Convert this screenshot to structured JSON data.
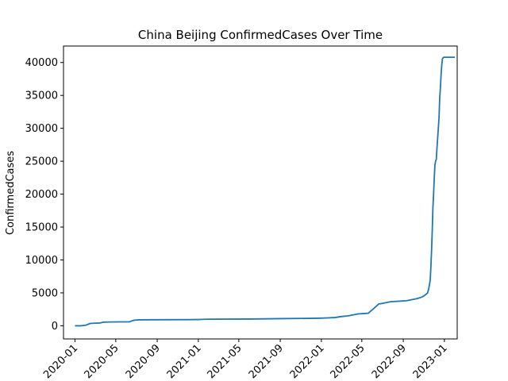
{
  "chart_data": {
    "type": "line",
    "title": "China Beijing ConfirmedCases Over Time",
    "xlabel": "",
    "ylabel": "ConfirmedCases",
    "ylim": [
      -2000,
      42500
    ],
    "xlim": [
      "2019-11-28",
      "2023-02-08"
    ],
    "grid": false,
    "legend": "none",
    "x_ticks": [
      "2020-01-01",
      "2020-05-01",
      "2020-09-01",
      "2021-01-01",
      "2021-05-01",
      "2021-09-01",
      "2022-01-01",
      "2022-05-01",
      "2022-09-01",
      "2023-01-01"
    ],
    "x_tick_labels": [
      "2020-01",
      "2020-05",
      "2020-09",
      "2021-01",
      "2021-05",
      "2021-09",
      "2022-01",
      "2022-05",
      "2022-09",
      "2023-01"
    ],
    "y_ticks": [
      0,
      5000,
      10000,
      15000,
      20000,
      25000,
      30000,
      35000,
      40000
    ],
    "y_tick_labels": [
      "0",
      "5000",
      "10000",
      "15000",
      "20000",
      "25000",
      "30000",
      "35000",
      "40000"
    ],
    "line_color": "#1f77b4",
    "series": [
      {
        "x": [
          "2020-01-01",
          "2020-01-20",
          "2020-02-03",
          "2020-02-15",
          "2020-03-01",
          "2020-03-15",
          "2020-03-25",
          "2020-04-15",
          "2020-05-15",
          "2020-06-11",
          "2020-06-18",
          "2020-06-25",
          "2020-07-10",
          "2020-09-01",
          "2020-12-01",
          "2021-01-01",
          "2021-01-31",
          "2021-06-01",
          "2021-09-01",
          "2021-12-01",
          "2022-01-01",
          "2022-01-20",
          "2022-02-10",
          "2022-03-01",
          "2022-03-20",
          "2022-04-05",
          "2022-04-20",
          "2022-05-05",
          "2022-05-20",
          "2022-06-05",
          "2022-06-20",
          "2022-07-01",
          "2022-07-25",
          "2022-08-10",
          "2022-08-25",
          "2022-09-10",
          "2022-09-25",
          "2022-10-10",
          "2022-10-20",
          "2022-10-28",
          "2022-11-03",
          "2022-11-08",
          "2022-11-12",
          "2022-11-15",
          "2022-11-18",
          "2022-11-20",
          "2022-11-22",
          "2022-11-24",
          "2022-11-26",
          "2022-11-28",
          "2022-11-30",
          "2022-12-02",
          "2022-12-04",
          "2022-12-06",
          "2022-12-08",
          "2022-12-10",
          "2022-12-12",
          "2022-12-14",
          "2022-12-16",
          "2022-12-18",
          "2022-12-20",
          "2022-12-22",
          "2022-12-24",
          "2022-12-26",
          "2022-12-28",
          "2022-12-30",
          "2023-01-01",
          "2023-01-05",
          "2023-02-01"
        ],
        "values": [
          0,
          0,
          100,
          350,
          400,
          420,
          550,
          580,
          590,
          600,
          750,
          850,
          900,
          920,
          930,
          950,
          1000,
          1020,
          1080,
          1130,
          1160,
          1200,
          1250,
          1400,
          1500,
          1650,
          1800,
          1850,
          1900,
          2600,
          3300,
          3400,
          3650,
          3700,
          3750,
          3800,
          3950,
          4100,
          4250,
          4400,
          4600,
          4800,
          5000,
          5500,
          6300,
          7000,
          9000,
          11500,
          14500,
          18000,
          20000,
          22500,
          24500,
          25000,
          25300,
          27000,
          28500,
          30000,
          31500,
          34500,
          36000,
          38000,
          39500,
          40500,
          40700,
          40800,
          40800,
          40800,
          40800
        ]
      }
    ]
  }
}
